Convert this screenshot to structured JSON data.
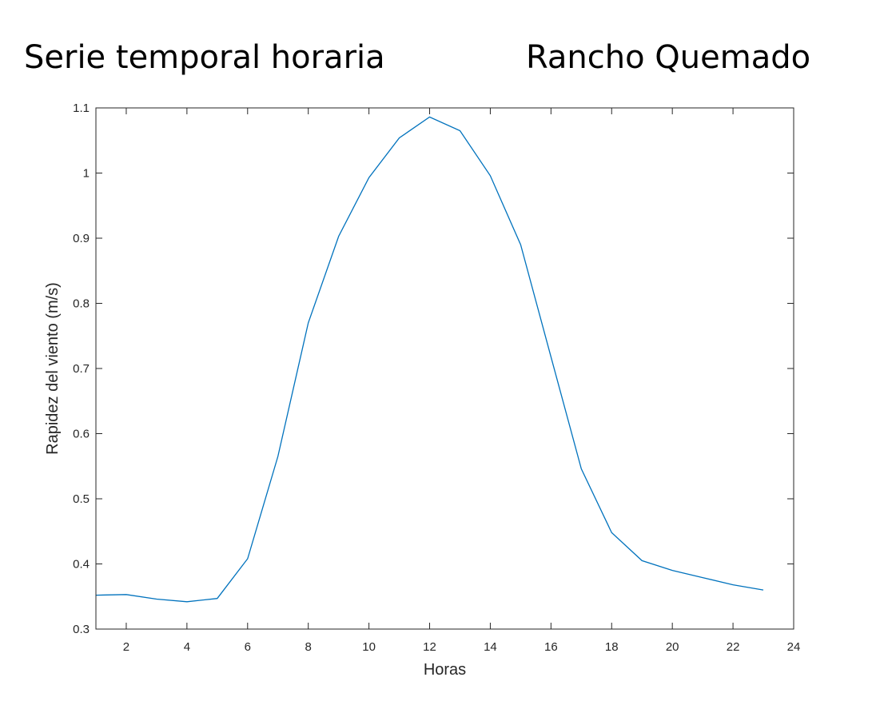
{
  "figure": {
    "title_left": "Serie temporal horaria",
    "title_right": "Rancho Quemado"
  },
  "chart_data": {
    "type": "line",
    "title": "",
    "xlabel": "Horas",
    "ylabel": "Rapidez del viento (m/s)",
    "xlim": [
      1,
      24
    ],
    "ylim": [
      0.3,
      1.1
    ],
    "xticks": [
      2,
      4,
      6,
      8,
      10,
      12,
      14,
      16,
      18,
      20,
      22,
      24
    ],
    "yticks": [
      0.3,
      0.4,
      0.5,
      0.6,
      0.7,
      0.8,
      0.9,
      1,
      1.1
    ],
    "grid": false,
    "line_color": "#0072BD",
    "series": [
      {
        "x": [
          1,
          2,
          3,
          4,
          5,
          6,
          7,
          8,
          9,
          10,
          11,
          12,
          13,
          14,
          15,
          16,
          17,
          18,
          19,
          20,
          21,
          22,
          23
        ],
        "values": [
          0.352,
          0.353,
          0.346,
          0.342,
          0.347,
          0.408,
          0.565,
          0.77,
          0.903,
          0.993,
          1.054,
          1.086,
          1.065,
          0.996,
          0.89,
          0.718,
          0.546,
          0.448,
          0.405,
          0.39,
          0.379,
          0.368,
          0.36
        ]
      }
    ]
  }
}
